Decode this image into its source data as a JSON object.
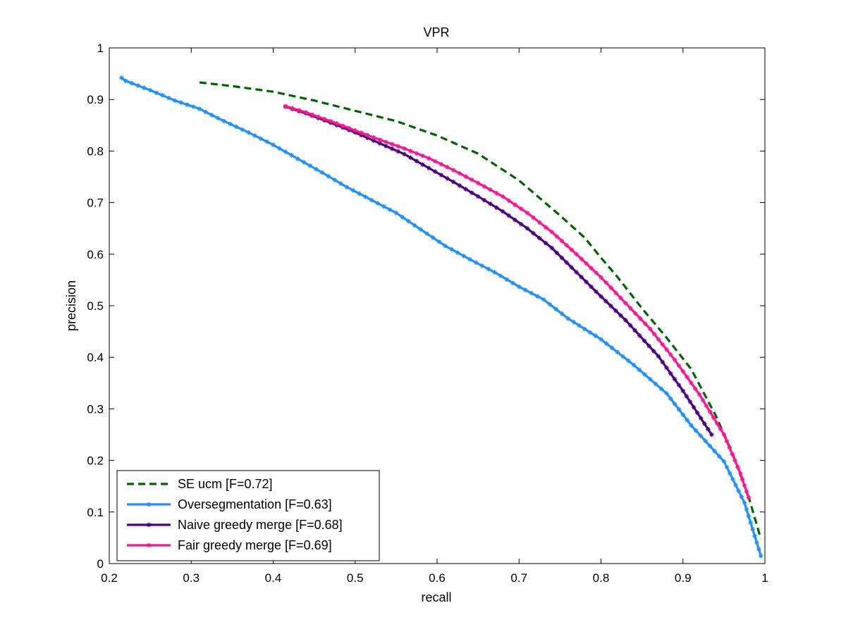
{
  "chart_data": {
    "type": "line",
    "title": "VPR",
    "xlabel": "recall",
    "ylabel": "precision",
    "xlim": [
      0.2,
      1
    ],
    "ylim": [
      0,
      1
    ],
    "xticks": [
      "0.2",
      "0.3",
      "0.4",
      "0.5",
      "0.6",
      "0.7",
      "0.8",
      "0.9",
      "1"
    ],
    "yticks": [
      "0",
      "0.1",
      "0.2",
      "0.3",
      "0.4",
      "0.5",
      "0.6",
      "0.7",
      "0.8",
      "0.9",
      "1"
    ],
    "grid": false,
    "legend_position": "bottom-left",
    "series": [
      {
        "name": "SE ucm [F=0.72]",
        "color": "#006400",
        "style": "dashed",
        "marker": "none",
        "points": [
          [
            0.31,
            0.933
          ],
          [
            0.35,
            0.926
          ],
          [
            0.4,
            0.915
          ],
          [
            0.45,
            0.898
          ],
          [
            0.5,
            0.878
          ],
          [
            0.55,
            0.858
          ],
          [
            0.6,
            0.83
          ],
          [
            0.65,
            0.795
          ],
          [
            0.7,
            0.743
          ],
          [
            0.75,
            0.675
          ],
          [
            0.78,
            0.632
          ],
          [
            0.8,
            0.593
          ],
          [
            0.82,
            0.556
          ],
          [
            0.85,
            0.495
          ],
          [
            0.88,
            0.438
          ],
          [
            0.91,
            0.377
          ],
          [
            0.94,
            0.287
          ],
          [
            0.96,
            0.215
          ],
          [
            0.98,
            0.13
          ],
          [
            0.995,
            0.048
          ]
        ]
      },
      {
        "name": "Oversegmentation [F=0.63]",
        "color": "#1e90ff",
        "style": "solid",
        "marker": "star",
        "points": [
          [
            0.215,
            0.942
          ],
          [
            0.22,
            0.936
          ],
          [
            0.25,
            0.918
          ],
          [
            0.28,
            0.898
          ],
          [
            0.31,
            0.882
          ],
          [
            0.34,
            0.858
          ],
          [
            0.37,
            0.836
          ],
          [
            0.4,
            0.812
          ],
          [
            0.43,
            0.785
          ],
          [
            0.46,
            0.758
          ],
          [
            0.49,
            0.73
          ],
          [
            0.52,
            0.705
          ],
          [
            0.55,
            0.68
          ],
          [
            0.58,
            0.648
          ],
          [
            0.61,
            0.616
          ],
          [
            0.64,
            0.59
          ],
          [
            0.67,
            0.565
          ],
          [
            0.7,
            0.537
          ],
          [
            0.73,
            0.512
          ],
          [
            0.76,
            0.475
          ],
          [
            0.8,
            0.435
          ],
          [
            0.84,
            0.385
          ],
          [
            0.88,
            0.33
          ],
          [
            0.91,
            0.268
          ],
          [
            0.95,
            0.198
          ],
          [
            0.975,
            0.118
          ],
          [
            0.995,
            0.015
          ]
        ]
      },
      {
        "name": "Naive greedy merge [F=0.68]",
        "color": "#4b0082",
        "style": "solid",
        "marker": "star",
        "points": [
          [
            0.415,
            0.886
          ],
          [
            0.44,
            0.873
          ],
          [
            0.47,
            0.855
          ],
          [
            0.5,
            0.836
          ],
          [
            0.53,
            0.815
          ],
          [
            0.56,
            0.794
          ],
          [
            0.59,
            0.767
          ],
          [
            0.62,
            0.74
          ],
          [
            0.65,
            0.712
          ],
          [
            0.68,
            0.683
          ],
          [
            0.71,
            0.65
          ],
          [
            0.74,
            0.612
          ],
          [
            0.77,
            0.565
          ],
          [
            0.8,
            0.518
          ],
          [
            0.83,
            0.472
          ],
          [
            0.87,
            0.402
          ],
          [
            0.9,
            0.335
          ],
          [
            0.935,
            0.25
          ]
        ]
      },
      {
        "name": "Fair greedy merge [F=0.69]",
        "color": "#ff1493",
        "style": "solid",
        "marker": "star",
        "points": [
          [
            0.415,
            0.887
          ],
          [
            0.44,
            0.875
          ],
          [
            0.47,
            0.858
          ],
          [
            0.5,
            0.84
          ],
          [
            0.53,
            0.822
          ],
          [
            0.56,
            0.805
          ],
          [
            0.59,
            0.786
          ],
          [
            0.62,
            0.763
          ],
          [
            0.65,
            0.738
          ],
          [
            0.68,
            0.712
          ],
          [
            0.71,
            0.68
          ],
          [
            0.74,
            0.643
          ],
          [
            0.77,
            0.6
          ],
          [
            0.8,
            0.555
          ],
          [
            0.83,
            0.505
          ],
          [
            0.86,
            0.455
          ],
          [
            0.89,
            0.395
          ],
          [
            0.92,
            0.328
          ],
          [
            0.95,
            0.25
          ],
          [
            0.97,
            0.175
          ],
          [
            0.98,
            0.128
          ]
        ]
      }
    ]
  }
}
